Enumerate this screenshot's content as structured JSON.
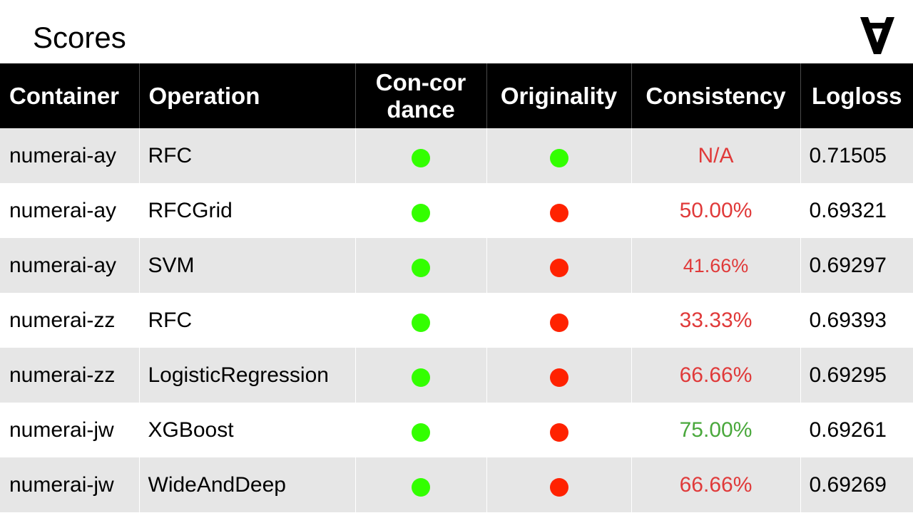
{
  "title": "Scores",
  "logo": {
    "icon": "inverted-a-logo-icon",
    "glyph": "∀"
  },
  "colors": {
    "header_bg": "#000000",
    "row_alt_bg": "#e6e6e6",
    "dot_green": "#33ff00",
    "dot_red": "#ff2200",
    "consistency_bad": "#e03a3a",
    "consistency_good": "#4aa83c"
  },
  "table": {
    "headers": {
      "container": "Container",
      "operation": "Operation",
      "concordance": "Con-cordance",
      "originality": "Originality",
      "consistency": "Consistency",
      "logloss": "Logloss"
    },
    "rows": [
      {
        "container": "numerai-ay",
        "operation": "RFC",
        "concordance": "green",
        "originality": "green",
        "consistency": "N/A",
        "consistency_status": "bad",
        "logloss": "0.71505"
      },
      {
        "container": "numerai-ay",
        "operation": "RFCGrid",
        "concordance": "green",
        "originality": "red",
        "consistency": "50.00%",
        "consistency_status": "bad",
        "logloss": "0.69321"
      },
      {
        "container": "numerai-ay",
        "operation": "SVM",
        "concordance": "green",
        "originality": "red",
        "consistency": "41.66%",
        "consistency_status": "bad",
        "logloss": "0.69297"
      },
      {
        "container": "numerai-zz",
        "operation": "RFC",
        "concordance": "green",
        "originality": "red",
        "consistency": "33.33%",
        "consistency_status": "bad",
        "logloss": "0.69393"
      },
      {
        "container": "numerai-zz",
        "operation": "LogisticRegression",
        "concordance": "green",
        "originality": "red",
        "consistency": "66.66%",
        "consistency_status": "bad",
        "logloss": "0.69295"
      },
      {
        "container": "numerai-jw",
        "operation": "XGBoost",
        "concordance": "green",
        "originality": "red",
        "consistency": "75.00%",
        "consistency_status": "good",
        "logloss": "0.69261"
      },
      {
        "container": "numerai-jw",
        "operation": "WideAndDeep",
        "concordance": "green",
        "originality": "red",
        "consistency": "66.66%",
        "consistency_status": "bad",
        "logloss": "0.69269"
      }
    ]
  }
}
